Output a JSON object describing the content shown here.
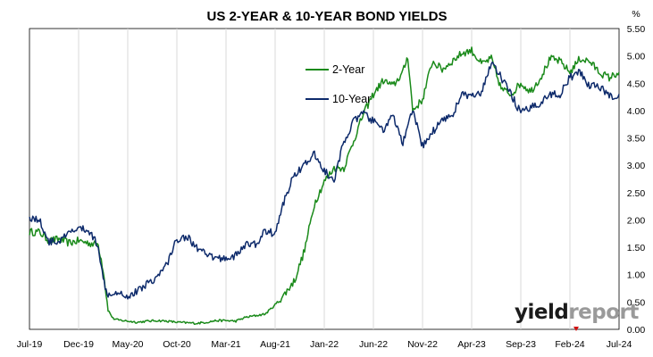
{
  "chart_data": {
    "type": "line",
    "title": "US 2-YEAR & 10-YEAR BOND YIELDS",
    "unit": "%",
    "ylim": [
      0,
      5.5
    ],
    "y_ticks": [
      "0.00",
      "0.50",
      "1.00",
      "1.50",
      "2.00",
      "2.50",
      "3.00",
      "3.50",
      "4.00",
      "4.50",
      "5.00",
      "5.50"
    ],
    "x_tick_labels": [
      "Jul-19",
      "Dec-19",
      "May-20",
      "Oct-20",
      "Mar-21",
      "Aug-21",
      "Jan-22",
      "Jun-22",
      "Nov-22",
      "Apr-23",
      "Sep-23",
      "Feb-24",
      "Jul-24"
    ],
    "grid": "vertical",
    "legend_position": "top-center",
    "series": [
      {
        "name": "2-Year",
        "color": "#1a8a1a",
        "x_months": [
          0,
          1,
          2,
          3,
          4,
          5,
          6,
          7,
          7.5,
          8,
          8.5,
          9,
          10,
          11,
          12,
          13,
          14,
          15,
          16,
          17,
          18,
          19,
          20,
          21,
          22,
          23,
          24,
          25,
          26,
          27,
          28,
          29,
          30,
          31,
          32,
          33,
          34,
          35,
          36,
          37,
          38,
          38.5,
          39,
          40,
          41,
          42,
          43,
          44,
          45,
          46,
          47,
          48,
          49,
          50,
          51,
          52,
          53,
          54,
          55,
          56,
          57,
          58,
          59,
          60
        ],
        "values": [
          1.78,
          1.78,
          1.62,
          1.65,
          1.58,
          1.62,
          1.58,
          1.55,
          1.1,
          0.35,
          0.2,
          0.17,
          0.15,
          0.13,
          0.15,
          0.16,
          0.15,
          0.13,
          0.12,
          0.11,
          0.13,
          0.16,
          0.16,
          0.15,
          0.22,
          0.25,
          0.28,
          0.45,
          0.65,
          0.9,
          1.45,
          2.3,
          2.7,
          2.95,
          2.95,
          3.45,
          3.95,
          4.3,
          4.55,
          4.45,
          4.7,
          5.0,
          4.0,
          4.2,
          4.9,
          4.75,
          4.9,
          5.05,
          5.1,
          4.85,
          4.95,
          4.4,
          4.3,
          4.5,
          4.35,
          4.6,
          4.95,
          4.9,
          4.7,
          4.95,
          4.9,
          4.7,
          4.6,
          4.7
        ]
      },
      {
        "name": "10-Year",
        "color": "#0d2a6b",
        "x_months": [
          0,
          1,
          2,
          3,
          4,
          5,
          6,
          7,
          7.5,
          8,
          9,
          10,
          11,
          12,
          13,
          14,
          15,
          16,
          17,
          18,
          19,
          20,
          21,
          22,
          23,
          24,
          25,
          26,
          27,
          28,
          29,
          30,
          31,
          32,
          33,
          34,
          35,
          36,
          37,
          38,
          39,
          40,
          41,
          42,
          43,
          44,
          45,
          46,
          47,
          48,
          49,
          50,
          51,
          52,
          53,
          54,
          55,
          56,
          57,
          58,
          59,
          60
        ],
        "values": [
          2.05,
          2.0,
          1.6,
          1.6,
          1.75,
          1.85,
          1.8,
          1.55,
          0.9,
          0.65,
          0.7,
          0.6,
          0.7,
          0.85,
          0.95,
          1.2,
          1.65,
          1.7,
          1.5,
          1.35,
          1.3,
          1.3,
          1.35,
          1.55,
          1.55,
          1.8,
          1.75,
          2.4,
          2.85,
          3.0,
          3.2,
          2.9,
          2.7,
          3.45,
          3.8,
          3.95,
          3.8,
          3.65,
          3.9,
          3.4,
          4.0,
          3.35,
          3.6,
          3.85,
          3.9,
          4.3,
          4.25,
          4.3,
          4.9,
          4.6,
          4.3,
          3.95,
          4.05,
          4.15,
          4.3,
          4.3,
          4.6,
          4.7,
          4.45,
          4.45,
          4.25,
          4.3
        ]
      }
    ]
  },
  "watermark": {
    "part1": "yield",
    "part2": "report",
    "accent_color": "#d01010"
  }
}
